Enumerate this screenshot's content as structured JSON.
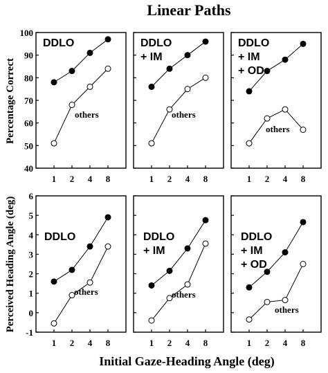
{
  "figure": {
    "title": "Linear Paths",
    "xlabel": "Initial Gaze-Heading Angle (deg)",
    "top_ylabel": "Percentage Correct",
    "bottom_ylabel": "Perceived Heading Angle (deg)",
    "colors": {
      "filled": "#000000",
      "open": "#ffffff",
      "axis": "#000000"
    }
  },
  "chart_data": [
    {
      "type": "line",
      "row": "top",
      "col": 0,
      "panel_label": [
        "DDLO"
      ],
      "categories": [
        "1",
        "2",
        "4",
        "8"
      ],
      "ylim": [
        40,
        100
      ],
      "yticks": [
        40,
        50,
        60,
        70,
        80,
        90,
        100
      ],
      "series": [
        {
          "label": "",
          "marker": "filled",
          "values": [
            78,
            83,
            91,
            97
          ]
        },
        {
          "label": "others",
          "marker": "open",
          "values": [
            51,
            68,
            76,
            84
          ]
        }
      ]
    },
    {
      "type": "line",
      "row": "top",
      "col": 1,
      "panel_label": [
        "DDLO",
        "+ IM"
      ],
      "categories": [
        "1",
        "2",
        "4",
        "8"
      ],
      "ylim": [
        40,
        100
      ],
      "yticks": [
        40,
        50,
        60,
        70,
        80,
        90,
        100
      ],
      "series": [
        {
          "label": "",
          "marker": "filled",
          "values": [
            76,
            84,
            90,
            96
          ]
        },
        {
          "label": "others",
          "marker": "open",
          "values": [
            51,
            66,
            75,
            80
          ]
        }
      ]
    },
    {
      "type": "line",
      "row": "top",
      "col": 2,
      "panel_label": [
        "DDLO",
        "+ IM",
        "+ OD"
      ],
      "categories": [
        "1",
        "2",
        "4",
        "8"
      ],
      "ylim": [
        40,
        100
      ],
      "yticks": [
        40,
        50,
        60,
        70,
        80,
        90,
        100
      ],
      "series": [
        {
          "label": "",
          "marker": "filled",
          "values": [
            74,
            83,
            88,
            95
          ]
        },
        {
          "label": "others",
          "marker": "open",
          "values": [
            51,
            62,
            66,
            57
          ]
        }
      ]
    },
    {
      "type": "line",
      "row": "bottom",
      "col": 0,
      "panel_label": [
        "DDLO"
      ],
      "categories": [
        "1",
        "2",
        "4",
        "8"
      ],
      "ylim": [
        -1,
        6
      ],
      "yticks": [
        -1,
        0,
        1,
        2,
        3,
        4,
        5,
        6
      ],
      "series": [
        {
          "label": "",
          "marker": "filled",
          "values": [
            1.6,
            2.2,
            3.4,
            4.9
          ]
        },
        {
          "label": "others",
          "marker": "open",
          "values": [
            -0.55,
            0.9,
            1.55,
            3.4
          ]
        }
      ]
    },
    {
      "type": "line",
      "row": "bottom",
      "col": 1,
      "panel_label": [
        "DDLO",
        "+ IM"
      ],
      "categories": [
        "1",
        "2",
        "4",
        "8"
      ],
      "ylim": [
        -1,
        6
      ],
      "yticks": [
        -1,
        0,
        1,
        2,
        3,
        4,
        5,
        6
      ],
      "series": [
        {
          "label": "",
          "marker": "filled",
          "values": [
            1.4,
            2.15,
            3.3,
            4.75
          ]
        },
        {
          "label": "others",
          "marker": "open",
          "values": [
            -0.4,
            0.75,
            1.45,
            3.55
          ]
        }
      ]
    },
    {
      "type": "line",
      "row": "bottom",
      "col": 2,
      "panel_label": [
        "DDLO",
        "+ IM",
        "+ OD"
      ],
      "categories": [
        "1",
        "2",
        "4",
        "8"
      ],
      "ylim": [
        -1,
        6
      ],
      "yticks": [
        -1,
        0,
        1,
        2,
        3,
        4,
        5,
        6
      ],
      "series": [
        {
          "label": "",
          "marker": "filled",
          "values": [
            1.3,
            2.1,
            3.1,
            4.65
          ]
        },
        {
          "label": "others",
          "marker": "open",
          "values": [
            -0.35,
            0.55,
            0.65,
            2.5
          ]
        }
      ]
    }
  ]
}
